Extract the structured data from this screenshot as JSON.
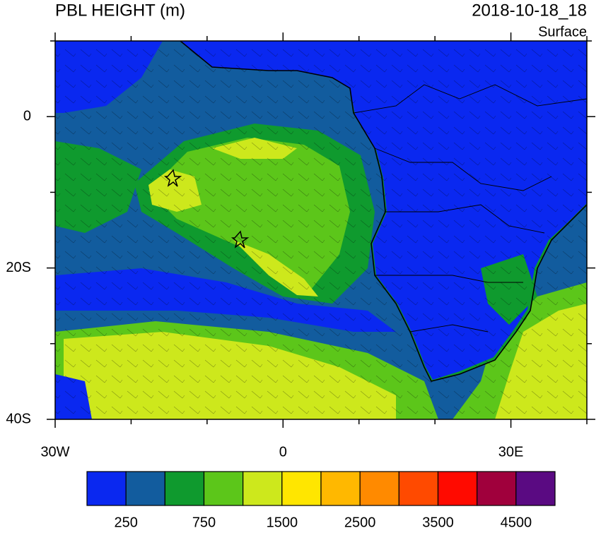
{
  "header": {
    "title": "PBL HEIGHT (m)",
    "time": "2018-10-18_18",
    "level": "Surface"
  },
  "map": {
    "lonlim": [
      -30,
      40
    ],
    "latlim": [
      -40,
      10
    ],
    "lon_ticks": [
      {
        "value": -30,
        "label": "30W"
      },
      {
        "value": 0,
        "label": "0"
      },
      {
        "value": 30,
        "label": "30E"
      }
    ],
    "lat_ticks": [
      {
        "value": 0,
        "label": "0"
      },
      {
        "value": -20,
        "label": "20S"
      },
      {
        "value": -40,
        "label": "40S"
      }
    ],
    "lon_minor": [
      -20,
      -10,
      10,
      20,
      40
    ],
    "lat_minor": [
      10,
      -10,
      -30
    ]
  },
  "colorbar": {
    "levels": [
      250,
      null,
      750,
      null,
      1500,
      null,
      2500,
      null,
      3500,
      null,
      4500
    ],
    "colors": [
      "#0a28f0",
      "#125c9e",
      "#0f9a2e",
      "#5cc61a",
      "#cde81c",
      "#ffe600",
      "#ffb800",
      "#ff8a00",
      "#ff4a00",
      "#ff0a00",
      "#a0003c",
      "#5a0a82"
    ]
  }
}
